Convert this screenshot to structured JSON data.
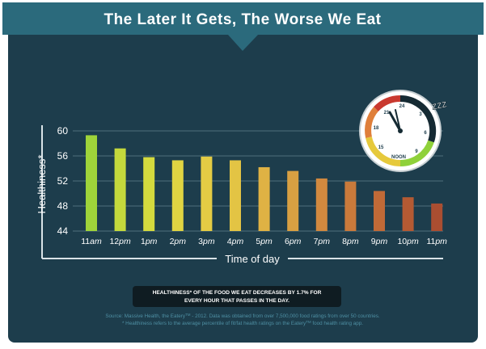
{
  "colors": {
    "panel": "#1d3d4c",
    "banner": "#2b6a7c",
    "banner_text": "#ffffff",
    "grid": "#4e6f7c",
    "axis": "#d9e3e7",
    "text": "#ffffff",
    "source_text": "#4e8fa3",
    "note_bg": "#0f1c22"
  },
  "header": {
    "title": "The Later It Gets, The Worse We Eat"
  },
  "chart_data": {
    "type": "bar",
    "title": "",
    "ylabel": "Healthiness*",
    "xlabel": "Time of day",
    "ylim": [
      44,
      60
    ],
    "yticks": [
      "44",
      "48",
      "52",
      "56",
      "60"
    ],
    "grid": true,
    "categories": [
      {
        "num": "11",
        "unit": "am"
      },
      {
        "num": "12",
        "unit": "pm"
      },
      {
        "num": "1",
        "unit": "pm"
      },
      {
        "num": "2",
        "unit": "pm"
      },
      {
        "num": "3",
        "unit": "pm"
      },
      {
        "num": "4",
        "unit": "pm"
      },
      {
        "num": "5",
        "unit": "pm"
      },
      {
        "num": "6",
        "unit": "pm"
      },
      {
        "num": "7",
        "unit": "pm"
      },
      {
        "num": "8",
        "unit": "pm"
      },
      {
        "num": "9",
        "unit": "pm"
      },
      {
        "num": "10",
        "unit": "pm"
      },
      {
        "num": "11",
        "unit": "pm"
      }
    ],
    "values": [
      59.3,
      57.2,
      55.8,
      55.3,
      55.9,
      55.3,
      54.2,
      53.6,
      52.4,
      51.9,
      50.4,
      49.4,
      48.4
    ],
    "bar_colors": [
      "#9fd43a",
      "#c4d93c",
      "#d4da3e",
      "#e0d442",
      "#e4cc44",
      "#e3c444",
      "#dfb244",
      "#d8a042",
      "#d1893f",
      "#c97a3b",
      "#c06a37",
      "#b45a33",
      "#aa4e31"
    ]
  },
  "clock": {
    "numbers": [
      "24",
      "3",
      "6",
      "9",
      "15",
      "18",
      "21"
    ],
    "noon_label": "NOON",
    "sleep_label": "ZZZ",
    "icon": "clock-icon"
  },
  "note": {
    "line1": "HEALTHINESS* OF THE FOOD WE EAT DECREASES BY 1.7% FOR",
    "line2": "EVERY HOUR THAT PASSES IN THE DAY."
  },
  "source": {
    "line1_a": "Source: Massive Health, the Eatery",
    "tm": "TM",
    "line1_b": " - 2012. Data was obtained from over 7,500,000 food ratings from over 50 countries.",
    "line2_a": "* Healthiness refers to the average percentile of fit/fat health ratings on the Eatery",
    "line2_b": " food health rating app."
  }
}
